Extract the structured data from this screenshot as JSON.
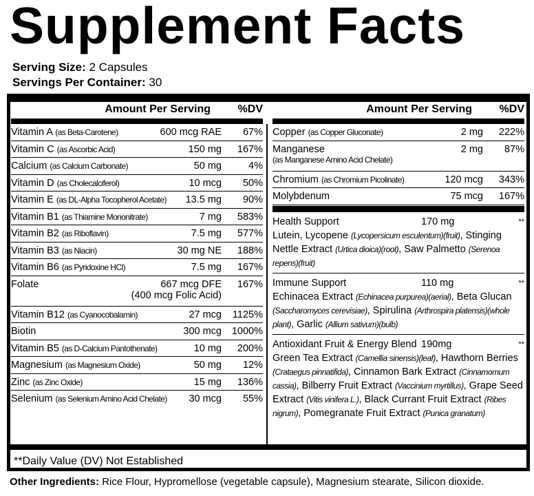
{
  "title": "Supplement Facts",
  "serving_size_label": "Serving Size:",
  "serving_size": "2 Capsules",
  "servings_label": "Servings Per Container:",
  "servings": "30",
  "header": {
    "amount": "Amount Per Serving",
    "dv": "%DV"
  },
  "left_rows": [
    {
      "name": "Vitamin A",
      "source": "(as Beta-Carotene)",
      "amount": "600 mcg RAE",
      "dv": "67%"
    },
    {
      "name": "Vitamin C",
      "source": "(as Ascorbic Acid)",
      "amount": "150 mg",
      "dv": "167%"
    },
    {
      "name": "Calcium",
      "source": "(as Calcium Carbonate)",
      "amount": "50 mg",
      "dv": "4%"
    },
    {
      "name": "Vitamin D",
      "source": "(as Cholecalciferol)",
      "amount": "10 mcg",
      "dv": "50%"
    },
    {
      "name": "Vitamin E",
      "source": "(as DL-Alpha Tocopherol Acetate)",
      "amount": "13.5 mg",
      "dv": "90%"
    },
    {
      "name": "Vitamin B1",
      "source": "(as Thiamine Mononitrate)",
      "amount": "7 mg",
      "dv": "583%"
    },
    {
      "name": "Vitamin B2",
      "source": "(as Riboflavin)",
      "amount": "7.5 mg",
      "dv": "577%"
    },
    {
      "name": "Vitamin B3",
      "source": "(as Niacin)",
      "amount": "30 mg NE",
      "dv": "188%"
    },
    {
      "name": "Vitamin B6",
      "source": "(as Pyridoxine HCl)",
      "amount": "7.5 mg",
      "dv": "167%"
    },
    {
      "name": "Folate",
      "source": "",
      "amount": "667 mcg DFE",
      "amount2": "(400 mcg Folic Acid)",
      "dv": "167%"
    },
    {
      "name": "Vitamin B12",
      "source": "(as Cyanocobalamin)",
      "amount": "27 mcg",
      "dv": "1125%"
    },
    {
      "name": "Biotin",
      "source": "",
      "amount": "300 mcg",
      "dv": "1000%"
    },
    {
      "name": "Vitamin B5",
      "source": "(as D-Calcium Pantothenate)",
      "amount": "10 mg",
      "dv": "200%"
    },
    {
      "name": "Magnesium",
      "source": "(as Magnesium Oxide)",
      "amount": "50 mg",
      "dv": "12%"
    },
    {
      "name": "Zinc",
      "source": "(as Zinc Oxide)",
      "amount": "15 mg",
      "dv": "136%"
    },
    {
      "name": "Selenium",
      "source": "(as Selenium Amino Acid Chelate)",
      "amount": "30 mcg",
      "dv": "55%"
    }
  ],
  "right_rows": [
    {
      "name": "Copper",
      "source": "(as Copper Gluconate)",
      "amount": "2 mg",
      "dv": "222%"
    },
    {
      "name": "Manganese",
      "source2": "(as Manganese Amino Acid Chelate)",
      "amount": "2 mg",
      "dv": "87%"
    },
    {
      "name": "Chromium",
      "source": "(as Chromium Picolinate)",
      "amount": "120 mcg",
      "dv": "343%"
    },
    {
      "name": "Molybdenum",
      "source": "",
      "amount": "75 mcg",
      "dv": "167%"
    }
  ],
  "blends": [
    {
      "name": "Health Support",
      "amount": "170 mg",
      "dv": "**",
      "parts": [
        [
          "Lutein, Lycopene ",
          "(Lycopersicum esculentum)(fruit)"
        ],
        [
          ", Stinging Nettle Extract ",
          "(Urtica dioica)(root)"
        ],
        [
          ", Saw Palmetto ",
          "(Serenoa repens)(fruit)"
        ]
      ]
    },
    {
      "name": "Immune Support",
      "amount": "110 mg",
      "dv": "**",
      "parts": [
        [
          "Echinacea Extract ",
          "(Echinacea purpurea)(aerial)"
        ],
        [
          ", Beta Glucan ",
          "(Saccharomyces cerevisiae)"
        ],
        [
          ", Spirulina ",
          "(Arthrospira platensis)(whole plant)"
        ],
        [
          ", Garlic ",
          "(Allium sativum)(bulb)"
        ]
      ]
    },
    {
      "name": "Antioxidant Fruit & Energy Blend",
      "amount": "190mg",
      "dv": "**",
      "parts": [
        [
          "Green Tea Extract ",
          "(Camellia sinensis)(leaf)"
        ],
        [
          ", Hawthorn Berries ",
          "(Crataegus pinnatifida)"
        ],
        [
          ", Cinnamon Bark Extract ",
          "(Cinnamomum cassia)"
        ],
        [
          ", Bilberry Fruit Extract ",
          "(Vaccinium myrtillus)"
        ],
        [
          ", Grape Seed Extract ",
          "(Vitis vinifera L.)"
        ],
        [
          ", Black Currant Fruit Extract ",
          "(Ribes nigrum)"
        ],
        [
          ", Pomegranate Fruit Extract ",
          "(Punica granatum)"
        ]
      ]
    }
  ],
  "footnote": "**Daily Value (DV) Not Established",
  "other_label": "Other Ingredients:",
  "other": "Rice Flour, Hypromellose (vegetable capsule), Magnesium stearate, Silicon dioxide."
}
